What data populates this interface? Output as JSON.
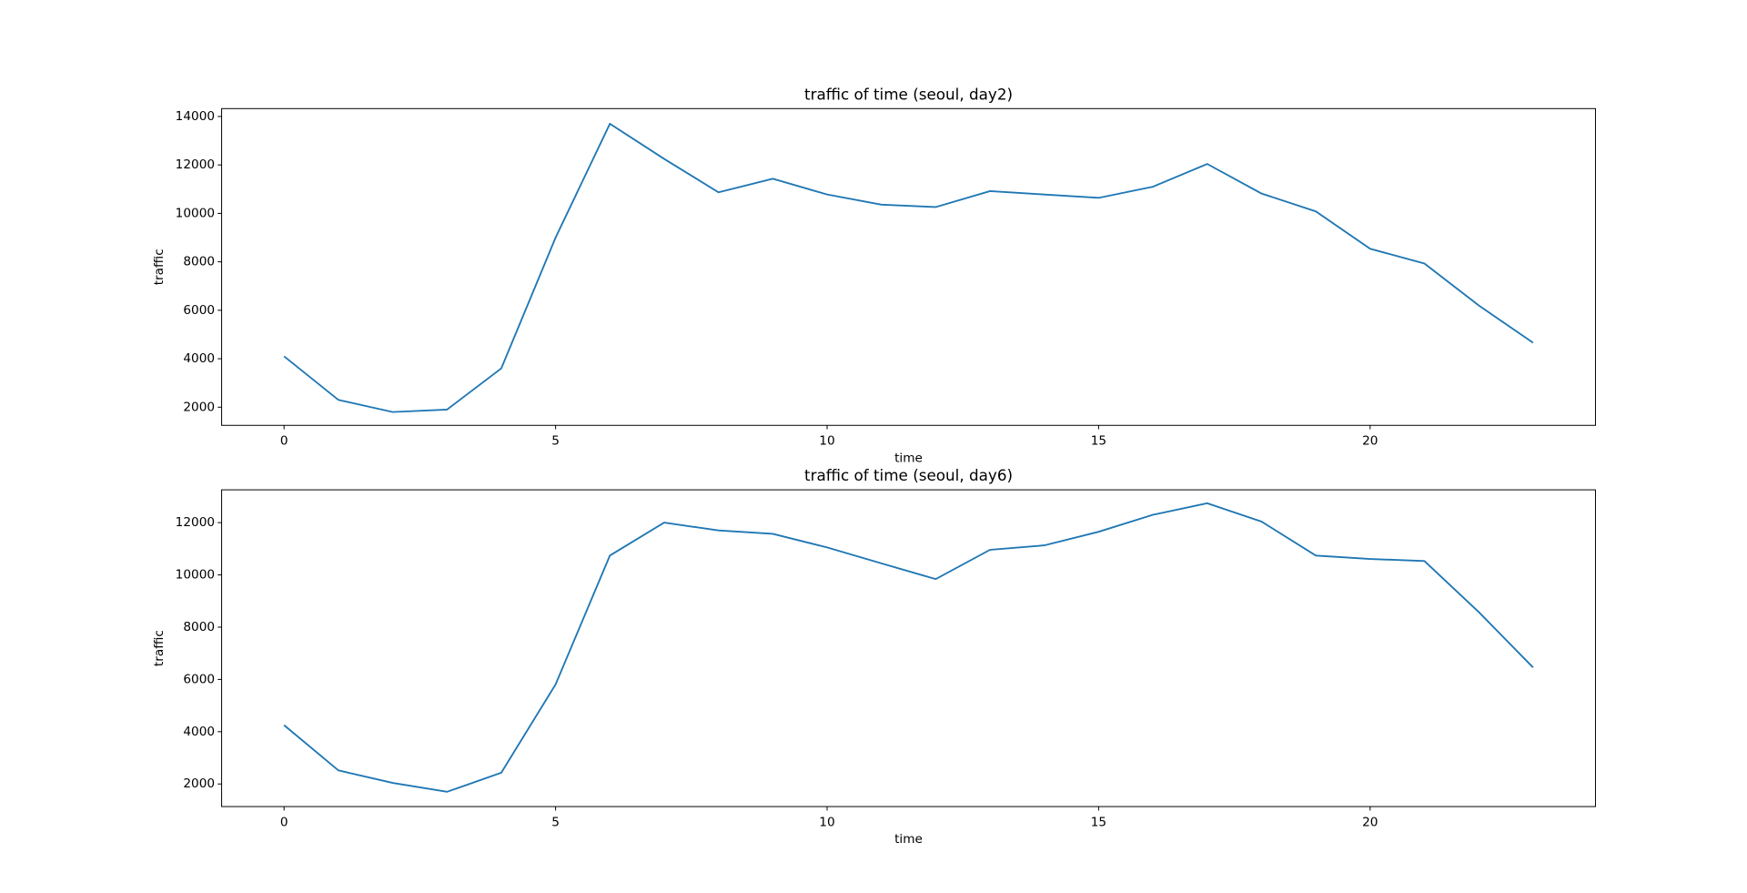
{
  "chart_data": [
    {
      "type": "line",
      "title": "traffic of time (seoul, day2)",
      "xlabel": "time",
      "ylabel": "traffic",
      "x": [
        0,
        1,
        2,
        3,
        4,
        5,
        6,
        7,
        8,
        9,
        10,
        11,
        12,
        13,
        14,
        15,
        16,
        17,
        18,
        19,
        20,
        21,
        22,
        23
      ],
      "series": [
        {
          "name": "traffic",
          "color": "#1f77b4",
          "values": [
            4100,
            2300,
            1800,
            1900,
            3600,
            9000,
            13700,
            12250,
            10870,
            11430,
            10780,
            10360,
            10260,
            10920,
            10780,
            10640,
            11100,
            12040,
            10820,
            10080,
            8540,
            7930,
            6200,
            4660
          ]
        }
      ],
      "xlim": [
        -1.15,
        24.15
      ],
      "xticks": [
        0,
        5,
        10,
        15,
        20
      ],
      "ylim": [
        1250,
        14325
      ],
      "yticks": [
        2000,
        4000,
        6000,
        8000,
        10000,
        12000,
        14000
      ]
    },
    {
      "type": "line",
      "title": "traffic of time (seoul, day6)",
      "xlabel": "time",
      "ylabel": "traffic",
      "x": [
        0,
        1,
        2,
        3,
        4,
        5,
        6,
        7,
        8,
        9,
        10,
        11,
        12,
        13,
        14,
        15,
        16,
        17,
        18,
        19,
        20,
        21,
        22,
        23
      ],
      "series": [
        {
          "name": "traffic",
          "color": "#1f77b4",
          "values": [
            4250,
            2520,
            2040,
            1700,
            2430,
            5810,
            10740,
            12000,
            11700,
            11570,
            11050,
            10440,
            9840,
            10960,
            11130,
            11650,
            12300,
            12740,
            12040,
            10740,
            10610,
            10530,
            8580,
            6460
          ]
        }
      ],
      "xlim": [
        -1.15,
        24.15
      ],
      "xticks": [
        0,
        5,
        10,
        15,
        20
      ],
      "ylim": [
        1135,
        13255
      ],
      "yticks": [
        2000,
        4000,
        6000,
        8000,
        10000,
        12000
      ]
    }
  ]
}
